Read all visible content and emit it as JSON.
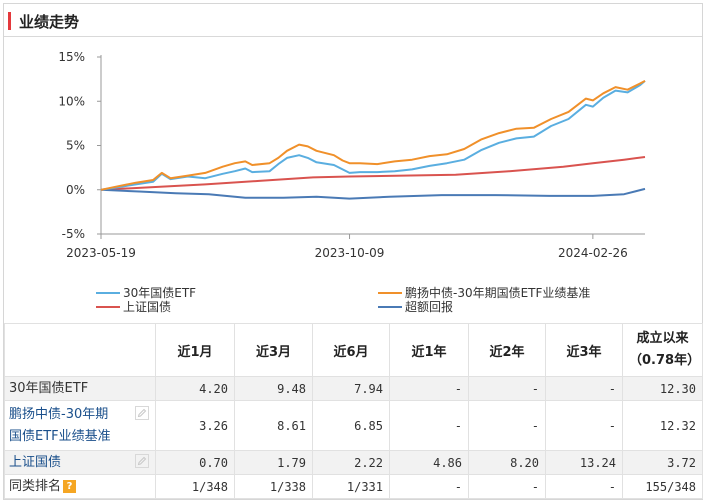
{
  "section_title": "业绩走势",
  "chart_data": {
    "type": "line",
    "y_unit": "%",
    "y_ticks": [
      "15%",
      "10%",
      "5%",
      "0%",
      "-5%"
    ],
    "y_tick_values": [
      15,
      10,
      5,
      0,
      -5
    ],
    "ylim": [
      -5,
      15
    ],
    "x_ticks": [
      "2023-05-19",
      "2023-10-09",
      "2024-02-26"
    ],
    "x_range": [
      "2023-05-19",
      "2024-03-27"
    ],
    "grid": false,
    "legend_position": "bottom",
    "series": [
      {
        "name": "30年国债ETF",
        "color": "#5aaee0",
        "points": [
          [
            "2023-05-19",
            0
          ],
          [
            "2023-05-29",
            0.3
          ],
          [
            "2023-06-08",
            0.6
          ],
          [
            "2023-06-18",
            0.9
          ],
          [
            "2023-06-23",
            1.8
          ],
          [
            "2023-06-28",
            1.2
          ],
          [
            "2023-07-08",
            1.5
          ],
          [
            "2023-07-18",
            1.3
          ],
          [
            "2023-07-28",
            1.8
          ],
          [
            "2023-08-04",
            2.1
          ],
          [
            "2023-08-10",
            2.4
          ],
          [
            "2023-08-14",
            2.0
          ],
          [
            "2023-08-24",
            2.1
          ],
          [
            "2023-08-29",
            2.9
          ],
          [
            "2023-09-03",
            3.6
          ],
          [
            "2023-09-10",
            3.9
          ],
          [
            "2023-09-15",
            3.6
          ],
          [
            "2023-09-20",
            3.1
          ],
          [
            "2023-09-30",
            2.8
          ],
          [
            "2023-10-05",
            2.3
          ],
          [
            "2023-10-09",
            1.9
          ],
          [
            "2023-10-15",
            2.0
          ],
          [
            "2023-10-25",
            2.0
          ],
          [
            "2023-11-04",
            2.1
          ],
          [
            "2023-11-14",
            2.3
          ],
          [
            "2023-11-24",
            2.7
          ],
          [
            "2023-12-04",
            3.0
          ],
          [
            "2023-12-14",
            3.4
          ],
          [
            "2023-12-24",
            4.5
          ],
          [
            "2024-01-03",
            5.3
          ],
          [
            "2024-01-13",
            5.8
          ],
          [
            "2024-01-23",
            6.0
          ],
          [
            "2024-02-02",
            7.2
          ],
          [
            "2024-02-12",
            8.0
          ],
          [
            "2024-02-22",
            9.6
          ],
          [
            "2024-02-26",
            9.4
          ],
          [
            "2024-03-03",
            10.4
          ],
          [
            "2024-03-10",
            11.2
          ],
          [
            "2024-03-17",
            11.0
          ],
          [
            "2024-03-24",
            11.8
          ],
          [
            "2024-03-27",
            12.3
          ]
        ]
      },
      {
        "name": "鹏扬中债-30年期国债ETF业绩基准",
        "color": "#f0902a",
        "points": [
          [
            "2023-05-19",
            0
          ],
          [
            "2023-05-29",
            0.4
          ],
          [
            "2023-06-08",
            0.8
          ],
          [
            "2023-06-18",
            1.1
          ],
          [
            "2023-06-23",
            1.9
          ],
          [
            "2023-06-28",
            1.3
          ],
          [
            "2023-07-08",
            1.6
          ],
          [
            "2023-07-18",
            1.9
          ],
          [
            "2023-07-28",
            2.6
          ],
          [
            "2023-08-04",
            3.0
          ],
          [
            "2023-08-10",
            3.2
          ],
          [
            "2023-08-14",
            2.8
          ],
          [
            "2023-08-24",
            3.0
          ],
          [
            "2023-08-29",
            3.6
          ],
          [
            "2023-09-03",
            4.4
          ],
          [
            "2023-09-10",
            5.1
          ],
          [
            "2023-09-15",
            4.9
          ],
          [
            "2023-09-20",
            4.4
          ],
          [
            "2023-09-30",
            3.9
          ],
          [
            "2023-10-05",
            3.3
          ],
          [
            "2023-10-09",
            3.0
          ],
          [
            "2023-10-15",
            3.0
          ],
          [
            "2023-10-25",
            2.9
          ],
          [
            "2023-11-04",
            3.2
          ],
          [
            "2023-11-14",
            3.4
          ],
          [
            "2023-11-24",
            3.8
          ],
          [
            "2023-12-04",
            4.0
          ],
          [
            "2023-12-14",
            4.6
          ],
          [
            "2023-12-24",
            5.7
          ],
          [
            "2024-01-03",
            6.4
          ],
          [
            "2024-01-13",
            6.9
          ],
          [
            "2024-01-23",
            7.0
          ],
          [
            "2024-02-02",
            8.0
          ],
          [
            "2024-02-12",
            8.8
          ],
          [
            "2024-02-22",
            10.3
          ],
          [
            "2024-02-26",
            10.1
          ],
          [
            "2024-03-03",
            10.9
          ],
          [
            "2024-03-10",
            11.6
          ],
          [
            "2024-03-17",
            11.3
          ],
          [
            "2024-03-24",
            12.0
          ],
          [
            "2024-03-27",
            12.3
          ]
        ]
      },
      {
        "name": "上证国债",
        "color": "#d9534f",
        "points": [
          [
            "2023-05-19",
            0
          ],
          [
            "2023-06-18",
            0.3
          ],
          [
            "2023-07-18",
            0.6
          ],
          [
            "2023-08-18",
            1.0
          ],
          [
            "2023-09-18",
            1.4
          ],
          [
            "2023-10-09",
            1.5
          ],
          [
            "2023-11-09",
            1.6
          ],
          [
            "2023-12-09",
            1.7
          ],
          [
            "2024-01-09",
            2.1
          ],
          [
            "2024-02-09",
            2.6
          ],
          [
            "2024-02-26",
            3.0
          ],
          [
            "2024-03-15",
            3.4
          ],
          [
            "2024-03-27",
            3.7
          ]
        ]
      },
      {
        "name": "超额回报",
        "color": "#4a7ab5",
        "points": [
          [
            "2023-05-19",
            0
          ],
          [
            "2023-06-10",
            -0.2
          ],
          [
            "2023-07-01",
            -0.4
          ],
          [
            "2023-07-20",
            -0.5
          ],
          [
            "2023-08-10",
            -0.9
          ],
          [
            "2023-09-01",
            -0.9
          ],
          [
            "2023-09-20",
            -0.8
          ],
          [
            "2023-10-09",
            -1.0
          ],
          [
            "2023-11-01",
            -0.8
          ],
          [
            "2023-12-01",
            -0.6
          ],
          [
            "2024-01-01",
            -0.6
          ],
          [
            "2024-02-01",
            -0.7
          ],
          [
            "2024-02-26",
            -0.7
          ],
          [
            "2024-03-15",
            -0.5
          ],
          [
            "2024-03-27",
            0.1
          ]
        ]
      }
    ]
  },
  "table": {
    "headers": [
      "",
      "近1月",
      "近3月",
      "近6月",
      "近1年",
      "近2年",
      "近3年",
      "成立以来",
      "（0.78年）"
    ],
    "rows": [
      {
        "name": "30年国债ETF",
        "values": [
          "4.20",
          "9.48",
          "7.94",
          "-",
          "-",
          "-",
          "12.30"
        ]
      },
      {
        "name_line1": "鹏扬中债-30年期",
        "name_line2": "国债ETF业绩基准",
        "values": [
          "3.26",
          "8.61",
          "6.85",
          "-",
          "-",
          "-",
          "12.32"
        ]
      },
      {
        "name": "上证国债",
        "values": [
          "0.70",
          "1.79",
          "2.22",
          "4.86",
          "8.20",
          "13.24",
          "3.72"
        ]
      },
      {
        "name": "同类排名",
        "values": [
          "1/348",
          "1/338",
          "1/331",
          "-",
          "-",
          "-",
          "155/348"
        ]
      }
    ],
    "help_glyph": "?"
  }
}
